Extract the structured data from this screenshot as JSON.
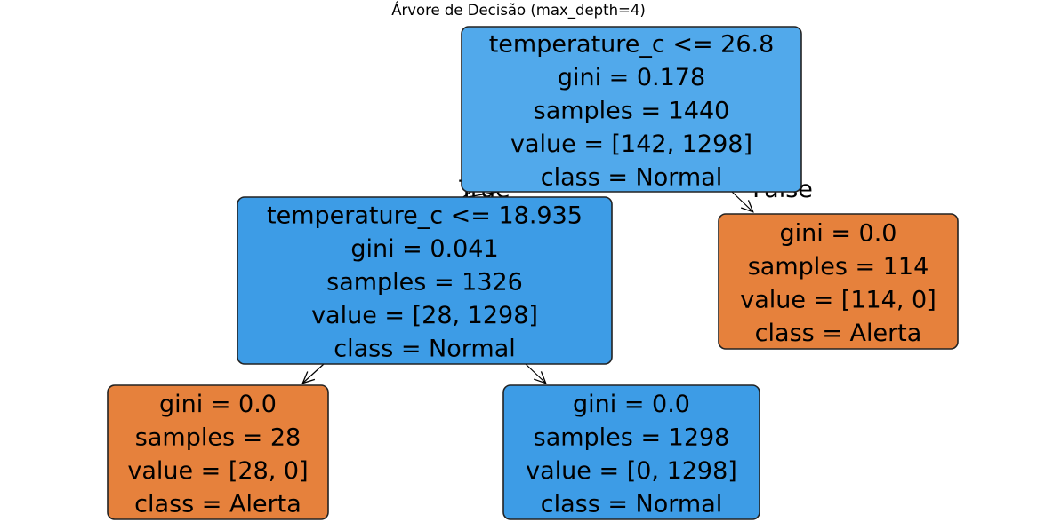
{
  "title": "Árvore de Decisão (max_depth=4)",
  "colors": {
    "normal_dark": "#3d9ce6",
    "normal_light": "#51a9eb",
    "alerta": "#e6813c"
  },
  "edge_labels": {
    "left": "True",
    "right": "False"
  },
  "nodes": [
    {
      "id": "root",
      "lines": [
        "temperature_c <= 26.8",
        "gini = 0.178",
        "samples = 1440",
        "value = [142, 1298]",
        "class = Normal"
      ],
      "class_color": "normal_light"
    },
    {
      "id": "left",
      "lines": [
        "temperature_c <= 18.935",
        "gini = 0.041",
        "samples = 1326",
        "value = [28, 1298]",
        "class = Normal"
      ],
      "class_color": "normal_dark"
    },
    {
      "id": "right",
      "lines": [
        "gini = 0.0",
        "samples = 114",
        "value = [114, 0]",
        "class = Alerta"
      ],
      "class_color": "alerta"
    },
    {
      "id": "left-left",
      "lines": [
        "gini = 0.0",
        "samples = 28",
        "value = [28, 0]",
        "class = Alerta"
      ],
      "class_color": "alerta"
    },
    {
      "id": "left-right",
      "lines": [
        "gini = 0.0",
        "samples = 1298",
        "value = [0, 1298]",
        "class = Normal"
      ],
      "class_color": "normal_dark"
    }
  ]
}
